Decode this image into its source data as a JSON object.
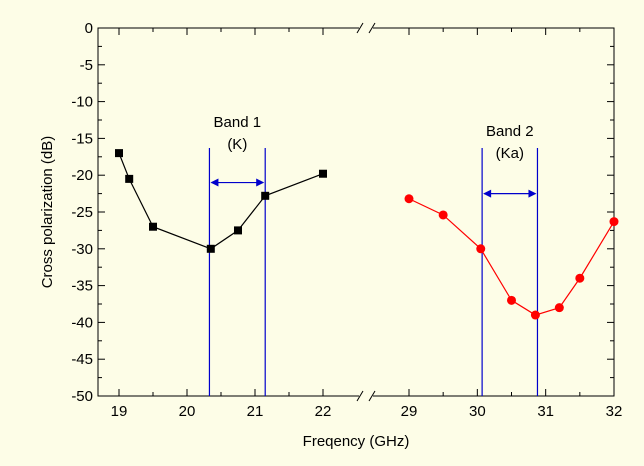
{
  "chart_data": {
    "type": "line",
    "xlabel": "Freqency (GHz)",
    "ylabel": "Cross polarization (dB)",
    "ylim": [
      -50,
      0
    ],
    "yticks": [
      "0",
      "-5",
      "-10",
      "-15",
      "-20",
      "-25",
      "-30",
      "-35",
      "-40",
      "-45",
      "-50"
    ],
    "grid": false,
    "broken_x_axis": true,
    "panels": [
      {
        "xlim": [
          19,
          22
        ],
        "xticks": [
          "19",
          "20",
          "21",
          "22"
        ]
      },
      {
        "xlim": [
          29,
          32
        ],
        "xticks": [
          "29",
          "30",
          "31",
          "32"
        ]
      }
    ],
    "series": [
      {
        "color": "#000000",
        "marker": "square",
        "panel": 0,
        "x": [
          19.0,
          19.15,
          19.5,
          20.35,
          20.75,
          21.15,
          22.0
        ],
        "y": [
          -17.0,
          -20.5,
          -27.0,
          -30.0,
          -27.5,
          -22.8,
          -19.8
        ]
      },
      {
        "color": "#ff0000",
        "marker": "circle",
        "panel": 1,
        "x": [
          29.0,
          29.5,
          30.05,
          30.5,
          30.85,
          31.2,
          31.5,
          32.0
        ],
        "y": [
          -23.2,
          -25.4,
          -30.0,
          -37.0,
          -39.0,
          -38.0,
          -34.0,
          -26.3
        ]
      }
    ],
    "annotations": [
      {
        "text_lines": [
          "Band 1",
          "(K)"
        ],
        "panel": 0,
        "x1": 20.33,
        "x2": 21.15,
        "y_arrow": -21.0,
        "line_color": "#0000cc"
      },
      {
        "text_lines": [
          "Band 2",
          "(Ka)"
        ],
        "panel": 1,
        "x1": 30.07,
        "x2": 30.88,
        "y_arrow": -22.5,
        "line_color": "#0000cc"
      }
    ]
  }
}
